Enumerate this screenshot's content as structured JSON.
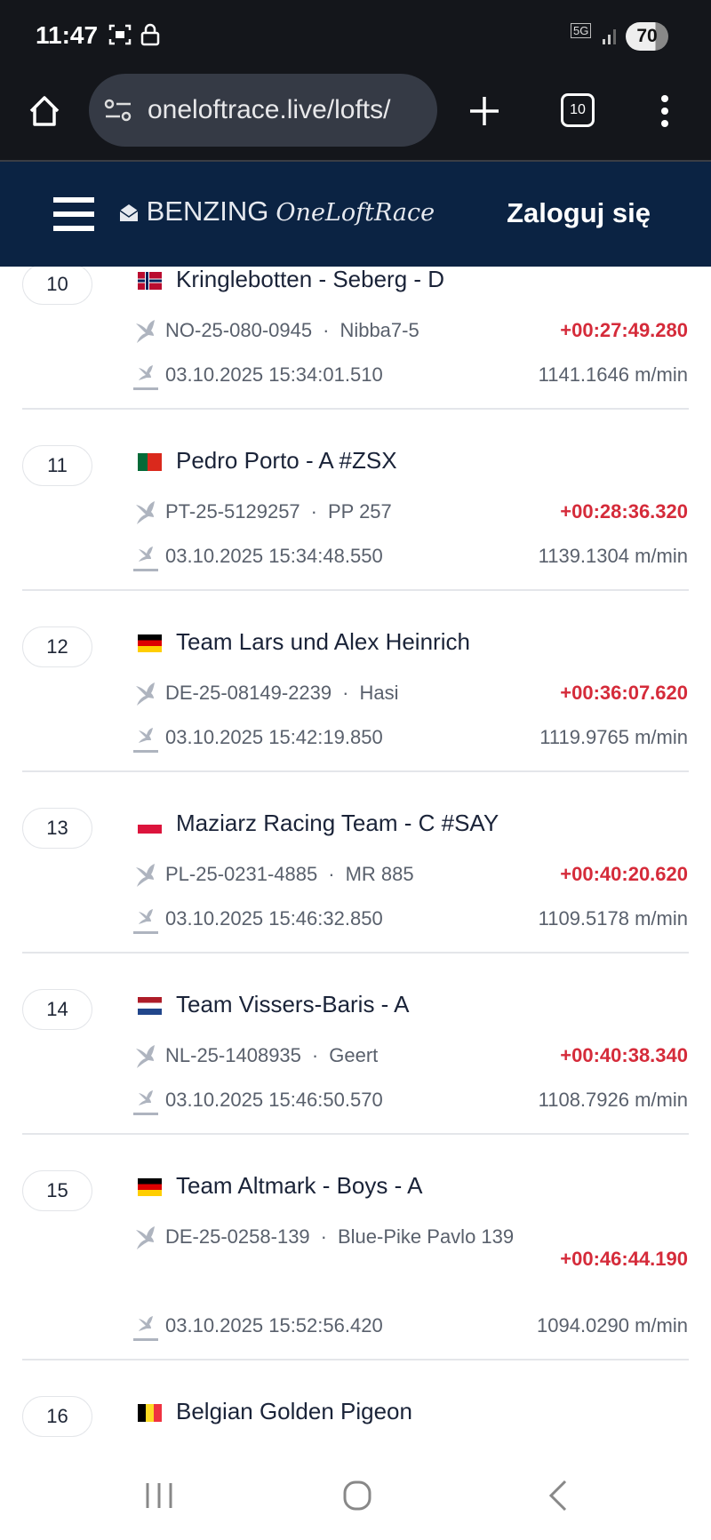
{
  "status_bar": {
    "time": "11:47",
    "network": "5G",
    "battery": "70"
  },
  "browser": {
    "url": "oneloftrace.live/lofts/",
    "tab_count": "10"
  },
  "header": {
    "brand": "BENZING",
    "brand_script": "OneLoftRace",
    "login_label": "Zaloguj się"
  },
  "colors": {
    "header_bg": "#0b2343",
    "gap_red": "#d52b3a",
    "text": "#1a2338",
    "muted": "#59606c"
  },
  "results": [
    {
      "rank": "10",
      "country": "NO",
      "name": "Kringlebotten - Seberg - D",
      "ring": "NO-25-080-0945",
      "pigeon": "Nibba7-5",
      "gap": "+00:27:49.280",
      "arrival": "03.10.2025 15:34:01.510",
      "speed": "1141.1646 m/min"
    },
    {
      "rank": "11",
      "country": "PT",
      "name": "Pedro Porto - A #ZSX",
      "ring": "PT-25-5129257",
      "pigeon": "PP 257",
      "gap": "+00:28:36.320",
      "arrival": "03.10.2025 15:34:48.550",
      "speed": "1139.1304 m/min"
    },
    {
      "rank": "12",
      "country": "DE",
      "name": "Team Lars und Alex Heinrich",
      "ring": "DE-25-08149-2239",
      "pigeon": "Hasi",
      "gap": "+00:36:07.620",
      "arrival": "03.10.2025 15:42:19.850",
      "speed": "1119.9765 m/min"
    },
    {
      "rank": "13",
      "country": "PL",
      "name": "Maziarz Racing Team - C #SAY",
      "ring": "PL-25-0231-4885",
      "pigeon": "MR 885",
      "gap": "+00:40:20.620",
      "arrival": "03.10.2025 15:46:32.850",
      "speed": "1109.5178 m/min"
    },
    {
      "rank": "14",
      "country": "NL",
      "name": "Team Vissers-Baris - A",
      "ring": "NL-25-1408935",
      "pigeon": "Geert",
      "gap": "+00:40:38.340",
      "arrival": "03.10.2025 15:46:50.570",
      "speed": "1108.7926 m/min"
    },
    {
      "rank": "15",
      "country": "DE",
      "name": "Team Altmark - Boys - A",
      "ring": "DE-25-0258-139",
      "pigeon": "Blue-Pike Pavlo 139",
      "gap": "+00:46:44.190",
      "arrival": "03.10.2025 15:52:56.420",
      "speed": "1094.0290 m/min"
    },
    {
      "rank": "16",
      "country": "BE",
      "name": "Belgian Golden Pigeon"
    }
  ]
}
